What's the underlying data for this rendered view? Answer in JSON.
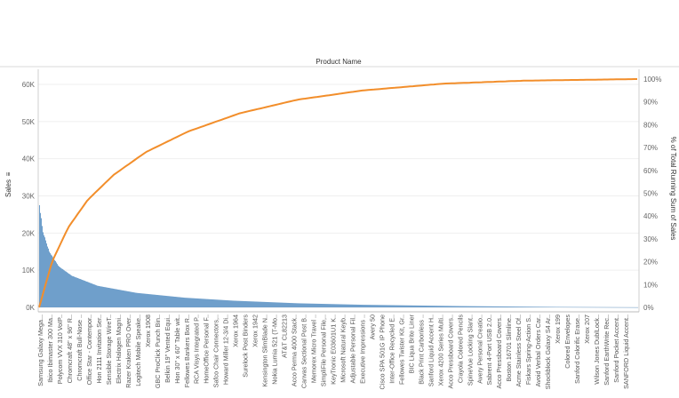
{
  "chart_data": {
    "type": "bar",
    "title": "Product Name",
    "ylabel": "Sales",
    "y2label": "% of Total Running Sum of Sales",
    "ylim": [
      0,
      65000
    ],
    "y2lim": [
      0,
      1.0
    ],
    "yticks": [
      "0K",
      "10K",
      "20K",
      "30K",
      "40K",
      "50K",
      "60K"
    ],
    "y2ticks": [
      "0%",
      "10%",
      "20%",
      "30%",
      "40%",
      "50%",
      "60%",
      "70%",
      "80%",
      "90%",
      "100%"
    ],
    "bar_color": "#6f9fcb",
    "line_color": "#f28e2b",
    "grid": true,
    "product_count": 1850,
    "bars_profile": [
      {
        "rank": 0,
        "sales": 27500
      },
      {
        "rank": 10,
        "sales": 20500
      },
      {
        "rank": 30,
        "sales": 15000
      },
      {
        "rank": 60,
        "sales": 11000
      },
      {
        "rank": 100,
        "sales": 8500
      },
      {
        "rank": 180,
        "sales": 5800
      },
      {
        "rank": 300,
        "sales": 3900
      },
      {
        "rank": 450,
        "sales": 2600
      },
      {
        "rank": 600,
        "sales": 1800
      },
      {
        "rank": 800,
        "sales": 1100
      },
      {
        "rank": 1000,
        "sales": 700
      },
      {
        "rank": 1300,
        "sales": 350
      },
      {
        "rank": 1600,
        "sales": 120
      },
      {
        "rank": 1849,
        "sales": 20
      }
    ],
    "cumulative_pct": [
      {
        "rank": 0,
        "pct": 0.0
      },
      {
        "rank": 40,
        "pct": 0.2
      },
      {
        "rank": 90,
        "pct": 0.35
      },
      {
        "rank": 150,
        "pct": 0.47
      },
      {
        "rank": 230,
        "pct": 0.58
      },
      {
        "rank": 330,
        "pct": 0.68
      },
      {
        "rank": 460,
        "pct": 0.77
      },
      {
        "rank": 620,
        "pct": 0.85
      },
      {
        "rank": 800,
        "pct": 0.91
      },
      {
        "rank": 1000,
        "pct": 0.95
      },
      {
        "rank": 1250,
        "pct": 0.98
      },
      {
        "rank": 1500,
        "pct": 0.993
      },
      {
        "rank": 1849,
        "pct": 1.0
      }
    ],
    "categories": [
      "Samsung Galaxy Mega...",
      "Ibico Ibimaster 300 Ma..",
      "Polycom VVX 310 VoIP..",
      "Chromcraft 48\" x 96\" R..",
      "Chromcraft Bull-Nose ..",
      "Office Star - Contempor..",
      "Hon 2111 Invitation Ser..",
      "Sensible Storage WireT..",
      "Electrix Halogen Magni..",
      "Razer Kraken PRO Over..",
      "Logitech Mobile Speake..",
      "Xerox 1908",
      "GBC ProClick Punch Bin..",
      "Belkin 19\" Vented Equi..",
      "Hon 30\" x 60\" Table wit..",
      "Fellowes Bankers Box R..",
      "RCA Visys Integrated P..",
      "HomeOffice Personal F..",
      "Safco Chair Connectors,..",
      "Howard Miller 12-3/4 Di..",
      "Xerox 1964",
      "Surelock Post Binders",
      "Xerox 1942",
      "Kensington SlimBlade N..",
      "Nokia Lumia 521 (T-Mo..",
      "AT&T CL82213",
      "Acco Perma 4000 Stack..",
      "Canvas Sectional Post B..",
      "Memorex Micro Travel ..",
      "SimpliFile Personal File,..",
      "KeyTronic E03601U1 K..",
      "Microsoft Natural Keyb..",
      "Adjustable Personal Fil..",
      "Executive Impressions ..",
      "Avery 50",
      "Cisco SPA 501G IP Phone",
      "Inter-Office Recycled E..",
      "Fellowes Twister Kit, Gr..",
      "BIC Liqua Brite Liner",
      "Black Print Carbonless ..",
      "Sanford Liquid Accent H..",
      "Xerox 4200 Series Multi..",
      "Acco Pressboard Covers..",
      "Crayola Colored Pencils",
      "SpineVue Locking Slant..",
      "Avery Personal Creatio..",
      "Sabrent 4-Port USB 2.0..",
      "Acco Pressboard Covers..",
      "Boston 16701 Slimline..",
      "Acme Stainless Steel Of..",
      "Fiskars Spring-Action S..",
      "Avoid Verbal Orders Car..",
      "Shockblock Galaxy S4 Ar..",
      "Xerox 199",
      "Colored Envelopes",
      "Sanford Colorific Erase..",
      "Xerox 207",
      "Wilson Jones DublLock..",
      "Sanford EarthWrite Rec..",
      "Sanford Pocket Accent..",
      "SANFORD Liquid Accent.."
    ]
  }
}
